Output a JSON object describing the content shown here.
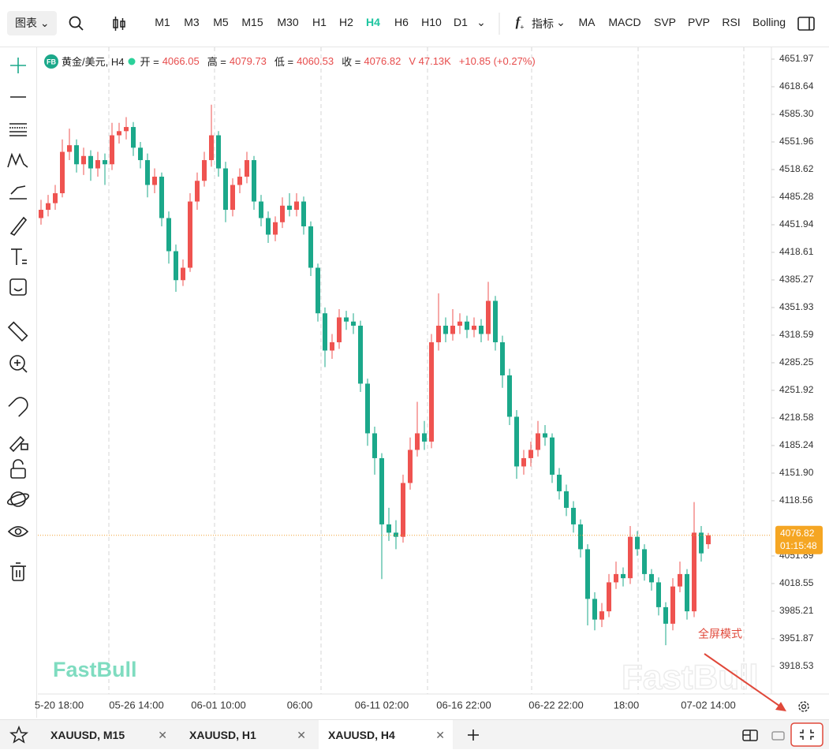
{
  "toolbar": {
    "chart_menu": "图表",
    "timeframes": [
      "M1",
      "M3",
      "M5",
      "M15",
      "M30",
      "H1",
      "H2",
      "H4",
      "H6",
      "H10",
      "D1"
    ],
    "active_timeframe_index": 7,
    "indicators_menu": "指标",
    "indicators": [
      "MA",
      "MACD",
      "SVP",
      "PVP",
      "RSI",
      "Bolling"
    ]
  },
  "legend": {
    "logo": "FB",
    "symbol": "黄金/美元, H4",
    "open_label": "开 =",
    "high_label": "高 =",
    "low_label": "低 =",
    "close_label": "收 =",
    "volume": "V 47.13K",
    "change": "+10.85 (+0.27%)"
  },
  "chart_data": {
    "type": "candlestick",
    "up_color": "#ef5350",
    "down_color": "#1ba88a",
    "ylim": [
      3885.11,
      4666.26
    ],
    "yticks": [
      4651.97,
      4618.64,
      {
        "value": 4585.3,
        "label": "4585.30"
      },
      4551.96,
      4518.62,
      4485.28,
      4451.94,
      4418.61,
      4385.27,
      4351.93,
      4318.59,
      4285.25,
      4251.92,
      4218.58,
      4185.24,
      {
        "value": 4151.9,
        "label": "4151.90"
      },
      4118.56,
      4051.89,
      4018.55,
      3985.21,
      3951.87,
      3918.53
    ],
    "x_labels": [
      "5-20 18:00",
      "05-26 14:00",
      "06-01 10:00",
      "06:00",
      "06-11 02:00",
      "06-16 22:00",
      "06-22 22:00",
      "18:00",
      "07-02 14:00"
    ],
    "last_price": 4076.82,
    "countdown": "01:15:48",
    "candles": [
      [
        4460,
        4482,
        4452,
        4470
      ],
      [
        4470,
        4488,
        4462,
        4478
      ],
      [
        4478,
        4500,
        4470,
        4490
      ],
      [
        4490,
        4555,
        4485,
        4540
      ],
      [
        4540,
        4568,
        4530,
        4548
      ],
      [
        4548,
        4555,
        4515,
        4525
      ],
      [
        4525,
        4545,
        4512,
        4535
      ],
      [
        4535,
        4542,
        4505,
        4520
      ],
      [
        4520,
        4540,
        4510,
        4530
      ],
      [
        4530,
        4538,
        4500,
        4525
      ],
      [
        4525,
        4575,
        4518,
        4560
      ],
      [
        4560,
        4575,
        4550,
        4565
      ],
      [
        4565,
        4582,
        4555,
        4570
      ],
      [
        4570,
        4576,
        4535,
        4545
      ],
      [
        4545,
        4552,
        4520,
        4530
      ],
      [
        4530,
        4538,
        4485,
        4500
      ],
      [
        4500,
        4520,
        4490,
        4510
      ],
      [
        4510,
        4515,
        4450,
        4460
      ],
      [
        4460,
        4468,
        4405,
        4420
      ],
      [
        4420,
        4428,
        4371,
        4385
      ],
      [
        4385,
        4410,
        4378,
        4400
      ],
      [
        4400,
        4490,
        4395,
        4480
      ],
      [
        4480,
        4515,
        4470,
        4505
      ],
      [
        4505,
        4540,
        4498,
        4530
      ],
      [
        4530,
        4597,
        4522,
        4560
      ],
      [
        4560,
        4565,
        4510,
        4520
      ],
      [
        4520,
        4528,
        4455,
        4470
      ],
      [
        4470,
        4508,
        4462,
        4500
      ],
      [
        4500,
        4520,
        4490,
        4510
      ],
      [
        4510,
        4540,
        4502,
        4530
      ],
      [
        4530,
        4535,
        4470,
        4480
      ],
      [
        4480,
        4488,
        4450,
        4460
      ],
      [
        4460,
        4468,
        4430,
        4440
      ],
      [
        4440,
        4462,
        4432,
        4455
      ],
      [
        4455,
        4485,
        4448,
        4475
      ],
      [
        4475,
        4490,
        4462,
        4470
      ],
      [
        4470,
        4490,
        4462,
        4480
      ],
      [
        4480,
        4486,
        4440,
        4450
      ],
      [
        4450,
        4456,
        4390,
        4400
      ],
      [
        4400,
        4405,
        4335,
        4345
      ],
      [
        4345,
        4352,
        4280,
        4300
      ],
      [
        4300,
        4320,
        4290,
        4310
      ],
      [
        4310,
        4350,
        4302,
        4340
      ],
      [
        4340,
        4348,
        4325,
        4335
      ],
      [
        4335,
        4345,
        4320,
        4330
      ],
      [
        4330,
        4336,
        4250,
        4260
      ],
      [
        4260,
        4266,
        4185,
        4200
      ],
      [
        4200,
        4208,
        4150,
        4170
      ],
      [
        4170,
        4176,
        4024,
        4090
      ],
      [
        4090,
        4110,
        4070,
        4080
      ],
      [
        4080,
        4095,
        4060,
        4075
      ],
      [
        4075,
        4150,
        4068,
        4140
      ],
      [
        4140,
        4195,
        4132,
        4180
      ],
      [
        4180,
        4238,
        4172,
        4200
      ],
      [
        4200,
        4215,
        4180,
        4190
      ],
      [
        4190,
        4320,
        4182,
        4310
      ],
      [
        4310,
        4369,
        4300,
        4330
      ],
      [
        4330,
        4340,
        4310,
        4320
      ],
      [
        4320,
        4350,
        4312,
        4330
      ],
      [
        4330,
        4345,
        4320,
        4335
      ],
      [
        4335,
        4342,
        4315,
        4325
      ],
      [
        4325,
        4340,
        4316,
        4330
      ],
      [
        4330,
        4338,
        4310,
        4320
      ],
      [
        4320,
        4383,
        4312,
        4360
      ],
      [
        4360,
        4366,
        4300,
        4310
      ],
      [
        4310,
        4318,
        4255,
        4270
      ],
      [
        4270,
        4278,
        4210,
        4220
      ],
      [
        4220,
        4228,
        4145,
        4160
      ],
      [
        4160,
        4180,
        4150,
        4170
      ],
      [
        4170,
        4190,
        4160,
        4180
      ],
      [
        4180,
        4215,
        4172,
        4200
      ],
      [
        4200,
        4210,
        4185,
        4195
      ],
      [
        4195,
        4200,
        4140,
        4150
      ],
      [
        4150,
        4158,
        4120,
        4130
      ],
      [
        4130,
        4138,
        4100,
        4110
      ],
      [
        4110,
        4118,
        4080,
        4090
      ],
      [
        4090,
        4096,
        4050,
        4060
      ],
      [
        4060,
        4066,
        3968,
        4000
      ],
      [
        4000,
        4008,
        3962,
        3975
      ],
      [
        3975,
        3995,
        3966,
        3985
      ],
      [
        3985,
        4030,
        3978,
        4020
      ],
      [
        4020,
        4045,
        4012,
        4030
      ],
      [
        4030,
        4038,
        4015,
        4025
      ],
      [
        4025,
        4088,
        4018,
        4075
      ],
      [
        4075,
        4082,
        4052,
        4060
      ],
      [
        4060,
        4066,
        4022,
        4030
      ],
      [
        4030,
        4036,
        4010,
        4020
      ],
      [
        4020,
        4026,
        3980,
        3990
      ],
      [
        3990,
        3996,
        3944,
        3970
      ],
      [
        3970,
        4025,
        3962,
        4015
      ],
      [
        4015,
        4045,
        4008,
        4030
      ],
      [
        4030,
        4036,
        3975,
        3985
      ],
      [
        3985,
        4117,
        3978,
        4080
      ],
      [
        4080,
        4088,
        4045,
        4055
      ],
      [
        4066.05,
        4079.73,
        4060.53,
        4076.82
      ]
    ]
  },
  "watermark": "FastBull",
  "annotation": "全屏模式",
  "tabs": [
    "XAUUSD, M15",
    "XAUUSD, H1",
    "XAUUSD, H4"
  ],
  "active_tab_index": 2
}
